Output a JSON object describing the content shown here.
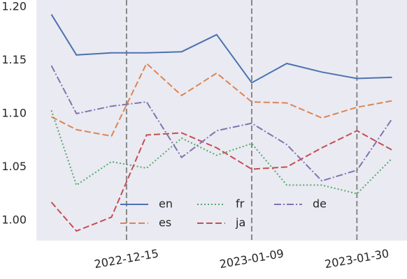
{
  "chart_data": {
    "type": "line",
    "x": [
      "2022-11-30",
      "2022-12-05",
      "2022-12-12",
      "2022-12-19",
      "2022-12-26",
      "2023-01-02",
      "2023-01-09",
      "2023-01-16",
      "2023-01-23",
      "2023-01-30",
      "2023-02-06"
    ],
    "series": [
      {
        "name": "en",
        "color": "#4c72b0",
        "linestyle": "solid",
        "values": [
          1.193,
          1.155,
          1.157,
          1.157,
          1.158,
          1.174,
          1.129,
          1.147,
          1.139,
          1.133,
          1.134
        ]
      },
      {
        "name": "es",
        "color": "#dd8452",
        "linestyle": "dashed",
        "values": [
          1.097,
          1.085,
          1.079,
          1.147,
          1.117,
          1.138,
          1.111,
          1.11,
          1.096,
          1.106,
          1.112
        ]
      },
      {
        "name": "fr",
        "color": "#55a868",
        "linestyle": "dotted",
        "values": [
          1.103,
          1.033,
          1.055,
          1.049,
          1.077,
          1.061,
          1.072,
          1.033,
          1.033,
          1.025,
          1.058
        ]
      },
      {
        "name": "ja",
        "color": "#c44e52",
        "linestyle": "dashed",
        "values": [
          1.017,
          0.99,
          1.003,
          1.08,
          1.082,
          1.068,
          1.048,
          1.05,
          1.068,
          1.084,
          1.066
        ]
      },
      {
        "name": "de",
        "color": "#8172b2",
        "linestyle": "dashdot",
        "values": [
          1.145,
          1.1,
          1.107,
          1.111,
          1.059,
          1.084,
          1.091,
          1.071,
          1.037,
          1.047,
          1.095
        ]
      }
    ],
    "xlim": [
      "2022-11-27",
      "2023-02-09"
    ],
    "xticks": [
      "2022-12-15",
      "2023-01-09",
      "2023-01-30"
    ],
    "ylim": [
      0.981,
      1.2065
    ],
    "yticks": [
      {
        "value": 1.0,
        "label": "1.00"
      },
      1.05,
      {
        "value": 1.1,
        "label": "1.10"
      },
      1.15,
      {
        "value": 1.2,
        "label": "1.20"
      }
    ],
    "xgrid": true,
    "legend": "lower center",
    "legend_columns": 3
  }
}
